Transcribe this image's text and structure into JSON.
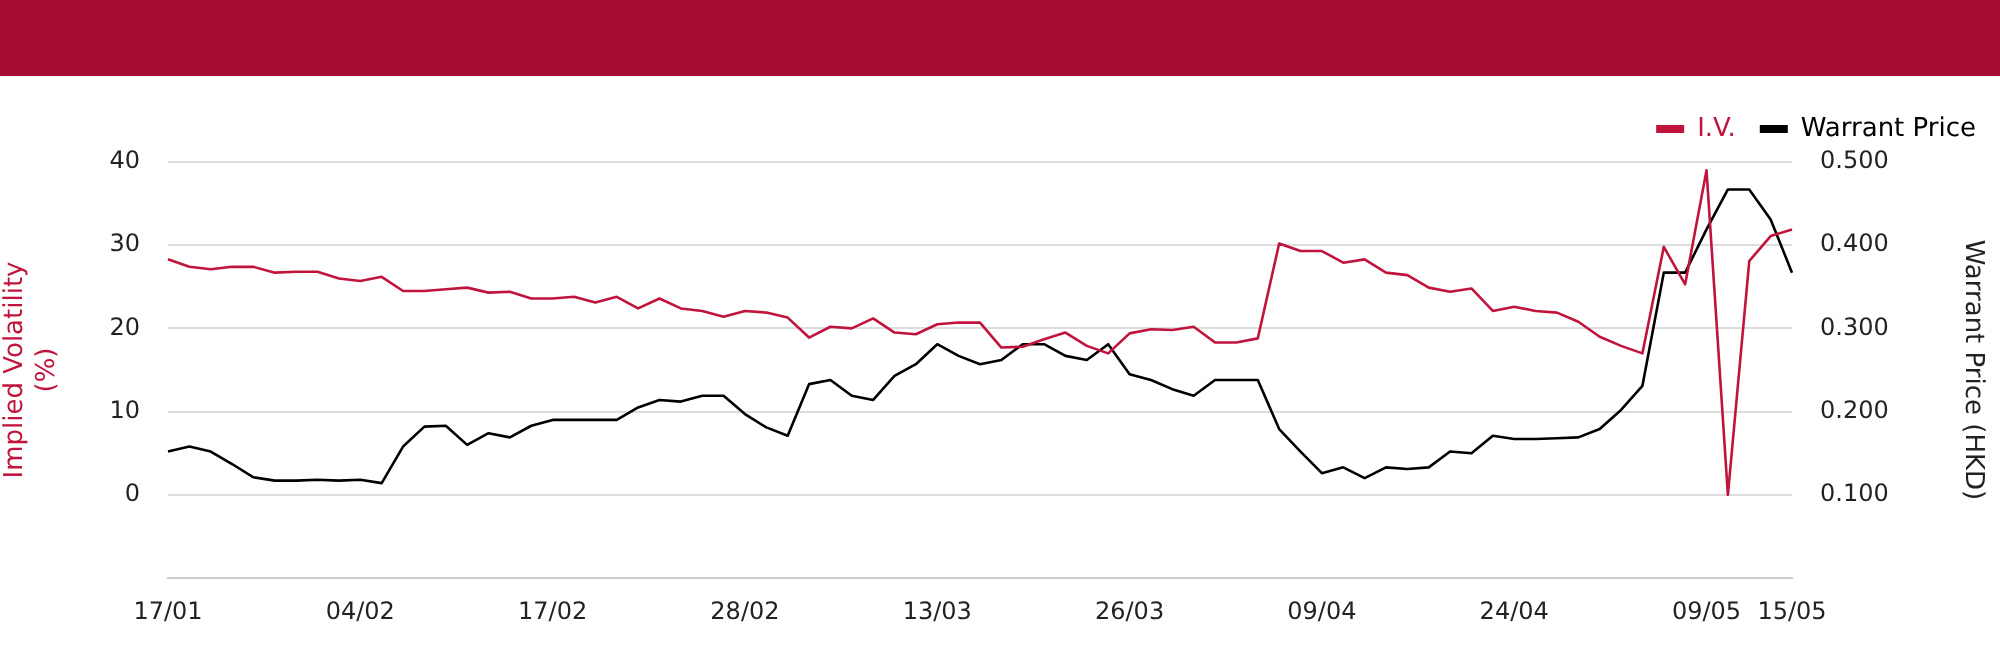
{
  "chart_data": {
    "type": "line",
    "ylabel": "Implied Volatility (%)",
    "y2label": "Warrant Price (HKD)",
    "categories": [
      "17/01",
      null,
      null,
      null,
      null,
      null,
      null,
      null,
      null,
      "04/02",
      null,
      null,
      null,
      null,
      null,
      null,
      null,
      null,
      "17/02",
      null,
      null,
      null,
      null,
      null,
      null,
      null,
      null,
      "28/02",
      null,
      null,
      null,
      null,
      null,
      null,
      null,
      null,
      "13/03",
      null,
      null,
      null,
      null,
      null,
      null,
      null,
      null,
      "26/03",
      null,
      null,
      null,
      null,
      null,
      null,
      null,
      null,
      "09/04",
      null,
      null,
      null,
      null,
      null,
      null,
      null,
      null,
      "24/04",
      null,
      null,
      null,
      null,
      null,
      null,
      null,
      null,
      "09/05",
      null,
      null,
      null,
      "15/05"
    ],
    "series": [
      {
        "name": "I.V.",
        "color": "#c0143c",
        "values": [
          28.3,
          27.4,
          27.1,
          27.4,
          27.4,
          26.7,
          26.8,
          26.8,
          26.0,
          25.7,
          26.2,
          24.5,
          24.5,
          24.7,
          24.9,
          24.3,
          24.4,
          23.6,
          23.6,
          23.8,
          23.1,
          23.8,
          22.4,
          23.6,
          22.4,
          22.1,
          21.4,
          22.1,
          21.9,
          21.3,
          18.9,
          20.2,
          20.0,
          21.2,
          19.5,
          19.3,
          20.5,
          20.7,
          20.7,
          17.7,
          17.8,
          18.7,
          19.5,
          17.9,
          17.0,
          19.4,
          19.9,
          19.8,
          20.2,
          18.3,
          18.3,
          18.8,
          30.2,
          29.3,
          29.3,
          27.9,
          28.3,
          26.7,
          26.4,
          24.9,
          24.4,
          24.8,
          22.1,
          22.6,
          22.1,
          21.9,
          20.8,
          19.0,
          17.9,
          17.0,
          29.8,
          25.3,
          39.0,
          0,
          28.1,
          31.1,
          31.9
        ]
      },
      {
        "name": "Warrant Price",
        "color": "#000000",
        "axis": "y2",
        "values": [
          0.152,
          0.158,
          0.152,
          0.137,
          0.121,
          0.117,
          0.117,
          0.118,
          0.117,
          0.118,
          0.114,
          0.158,
          0.182,
          0.183,
          0.16,
          0.174,
          0.169,
          0.183,
          0.19,
          0.19,
          0.19,
          0.19,
          0.205,
          0.214,
          0.212,
          0.219,
          0.219,
          0.197,
          0.181,
          0.171,
          0.233,
          0.238,
          0.219,
          0.214,
          0.243,
          0.257,
          0.281,
          0.267,
          0.257,
          0.262,
          0.281,
          0.281,
          0.267,
          0.262,
          0.281,
          0.245,
          0.238,
          0.227,
          0.219,
          0.238,
          0.238,
          0.238,
          0.179,
          0.152,
          0.126,
          0.133,
          0.12,
          0.133,
          0.131,
          0.133,
          0.152,
          0.15,
          0.171,
          0.167,
          0.167,
          0.168,
          0.169,
          0.179,
          0.202,
          0.231,
          0.367,
          0.367,
          0.419,
          0.467,
          0.467,
          0.431,
          0.367
        ]
      }
    ],
    "ylim": [
      -10,
      40
    ],
    "yticks": [
      0,
      10,
      20,
      30,
      40
    ],
    "y2lim": [
      0,
      0.5
    ],
    "y2ticks": [
      {
        "value": 0,
        "label": null
      },
      {
        "value": 0.1,
        "label": "0.100"
      },
      {
        "value": 0.2,
        "label": "0.200"
      },
      {
        "value": 0.3,
        "label": "0.300"
      },
      {
        "value": 0.4,
        "label": "0.400"
      },
      {
        "value": 0.5,
        "label": "0.500"
      }
    ],
    "grid": "y",
    "legend": "top right",
    "marker": "none",
    "line_style": "solid"
  }
}
